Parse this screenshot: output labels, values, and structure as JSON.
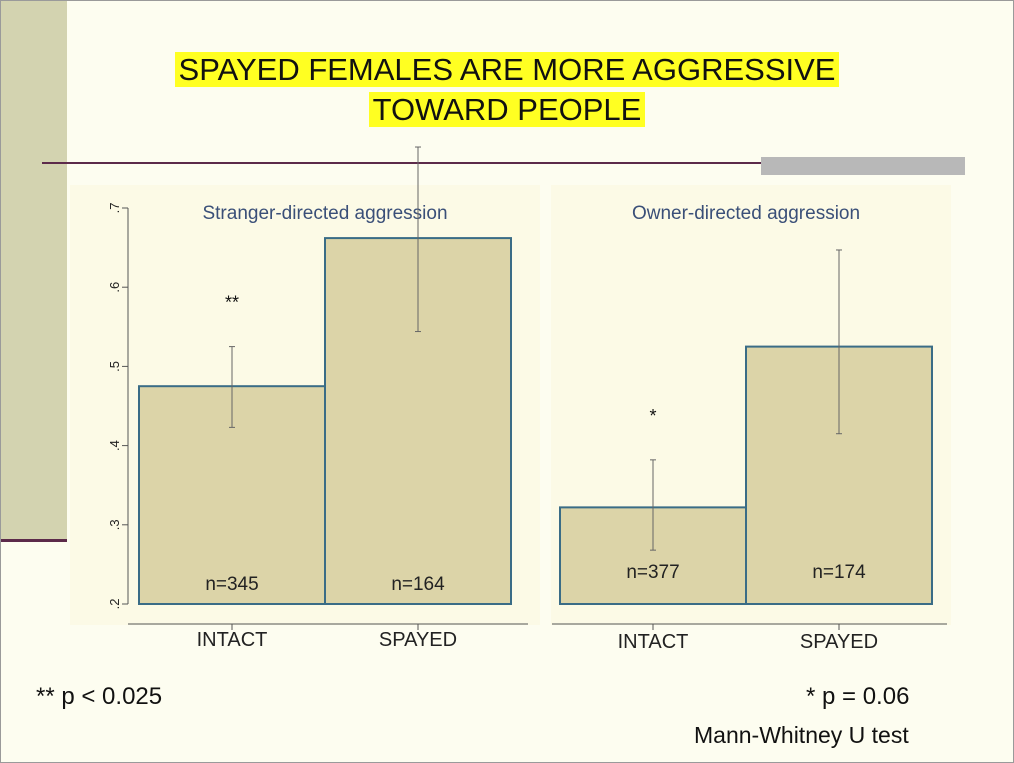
{
  "slide": {
    "title_line1": "SPAYED FEMALES ARE MORE AGGRESSIVE",
    "title_line2": "TOWARD PEOPLE",
    "note_left": "** p < 0.025",
    "note_right": "* p = 0.06",
    "test_name": "Mann-Whitney U test"
  },
  "colors": {
    "bar_fill": "#dcd4a8",
    "bar_stroke": "#3a6c86",
    "title_highlight": "#ffff22",
    "accent": "#5c2a4a"
  },
  "chart_data": {
    "type": "bar",
    "y_axis": {
      "ylim": [
        0.2,
        0.7
      ],
      "ticks": [
        0.2,
        0.3,
        0.4,
        0.5,
        0.6,
        0.7
      ],
      "tick_labels": [
        ".2",
        ".3",
        ".4",
        ".5",
        ".6",
        ".7"
      ]
    },
    "panels": [
      {
        "title": "Stranger-directed aggression",
        "categories": [
          "INTACT",
          "SPAYED"
        ],
        "values": [
          0.475,
          0.662
        ],
        "ci_low": [
          0.423,
          0.544
        ],
        "ci_high": [
          0.525,
          0.777
        ],
        "n_labels": [
          "n=345",
          "n=164"
        ],
        "significance": [
          "**",
          ""
        ]
      },
      {
        "title": "Owner-directed aggression",
        "categories": [
          "INTACT",
          "SPAYED"
        ],
        "values": [
          0.322,
          0.525
        ],
        "ci_low": [
          0.268,
          0.415
        ],
        "ci_high": [
          0.382,
          0.647
        ],
        "n_labels": [
          "n=377",
          "n=174"
        ],
        "significance": [
          "*",
          ""
        ]
      }
    ]
  }
}
